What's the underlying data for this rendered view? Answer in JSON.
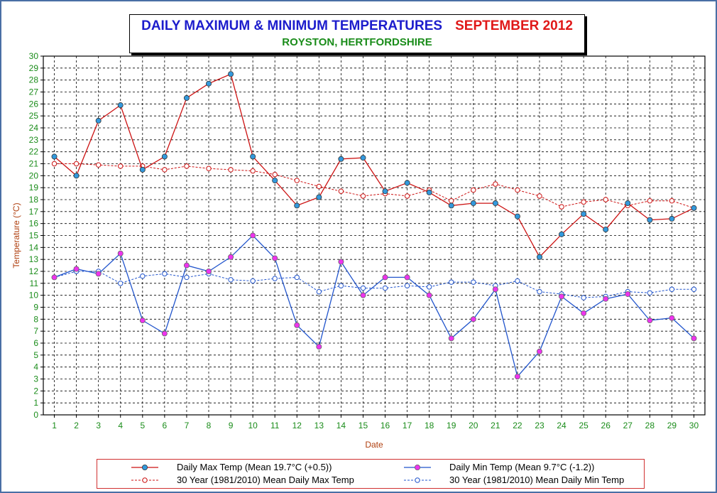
{
  "title": {
    "main": "DAILY MAXIMUM &  MINIMUM  TEMPERATURES",
    "month": "SEPTEMBER 2012",
    "subtitle": "ROYSTON, HERTFORDSHIRE"
  },
  "legend": {
    "max": "Daily Max Temp (Mean 19.7°C (+0.5))",
    "min": "Daily Min Temp (Mean 9.7°C (-1.2))",
    "mean_max": "30 Year (1981/2010) Mean Daily Max Temp",
    "mean_min": "30 Year (1981/2010) Mean Daily Min Temp"
  },
  "colors": {
    "max_line": "#cc1111",
    "min_line": "#2255cc",
    "max_marker": "#3399dd",
    "min_marker": "#ee33ee",
    "mean_max": "#cc1111",
    "mean_min": "#2255cc",
    "axis_text": "#1a8c1a",
    "axis_title": "#b04010"
  },
  "chart_data": {
    "type": "line",
    "xlabel": "Date",
    "ylabel": "Temperature (°C)",
    "ylim": [
      0,
      30
    ],
    "grid": true,
    "legend_position": "bottom",
    "x": [
      1,
      2,
      3,
      4,
      5,
      6,
      7,
      8,
      9,
      10,
      11,
      12,
      13,
      14,
      15,
      16,
      17,
      18,
      19,
      20,
      21,
      22,
      23,
      24,
      25,
      26,
      27,
      28,
      29,
      30
    ],
    "series": [
      {
        "name": "Daily Max Temp (Mean 19.7°C (+0.5))",
        "style": "solid",
        "values": [
          21.6,
          20.0,
          24.6,
          25.9,
          20.5,
          21.6,
          26.5,
          27.7,
          28.5,
          21.6,
          19.6,
          17.5,
          18.2,
          21.4,
          21.5,
          18.7,
          19.4,
          18.6,
          17.5,
          17.7,
          17.7,
          16.6,
          13.2,
          15.1,
          16.8,
          15.5,
          17.7,
          16.3,
          16.4,
          17.3
        ]
      },
      {
        "name": "Daily Min Temp (Mean 9.7°C (-1.2))",
        "style": "solid",
        "values": [
          11.5,
          12.2,
          11.8,
          13.5,
          7.9,
          6.8,
          12.5,
          12.0,
          13.2,
          15.0,
          13.1,
          7.5,
          5.7,
          12.8,
          10.0,
          11.5,
          11.5,
          10.0,
          6.4,
          8.0,
          10.5,
          3.2,
          5.3,
          9.9,
          8.5,
          9.7,
          10.1,
          7.9,
          8.1,
          6.4
        ]
      },
      {
        "name": "30 Year (1981/2010) Mean Daily Max Temp",
        "style": "dashed",
        "values": [
          21.0,
          21.0,
          20.9,
          20.8,
          20.8,
          20.5,
          20.8,
          20.6,
          20.5,
          20.4,
          20.1,
          19.6,
          19.1,
          18.7,
          18.3,
          18.5,
          18.3,
          18.8,
          17.9,
          18.8,
          19.3,
          18.8,
          18.3,
          17.4,
          17.8,
          18.0,
          17.5,
          17.9,
          17.9,
          17.3
        ]
      },
      {
        "name": "30 Year (1981/2010) Mean Daily Min Temp",
        "style": "dashed",
        "values": [
          11.5,
          12.0,
          12.0,
          11.0,
          11.6,
          11.8,
          11.5,
          11.8,
          11.3,
          11.2,
          11.4,
          11.5,
          10.3,
          10.8,
          10.6,
          10.6,
          10.8,
          10.7,
          11.1,
          11.1,
          10.8,
          11.2,
          10.3,
          10.1,
          9.8,
          9.9,
          10.3,
          10.2,
          10.5,
          10.5
        ]
      }
    ]
  }
}
